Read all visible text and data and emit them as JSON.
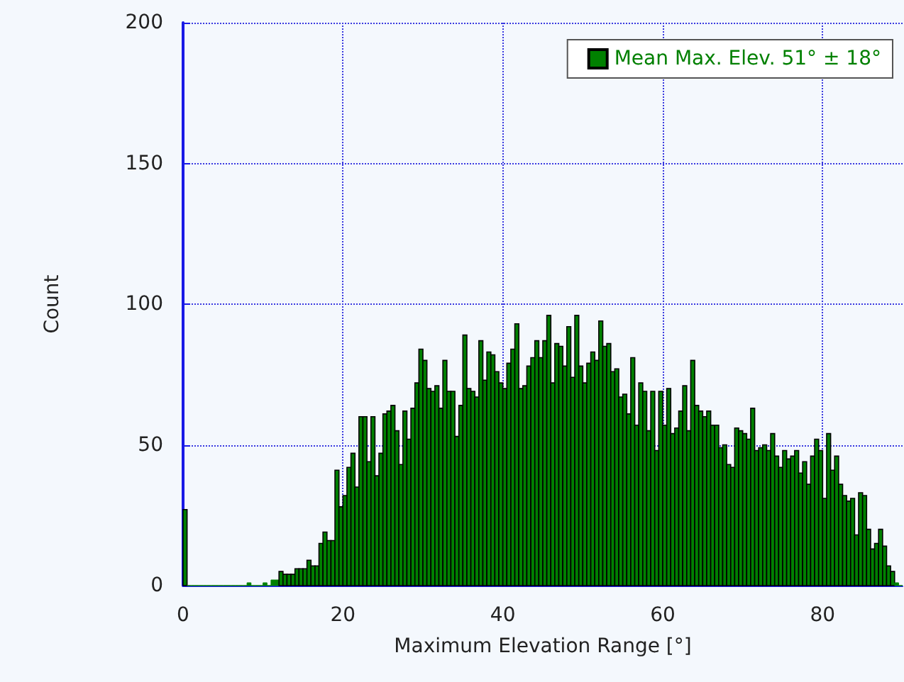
{
  "chart_data": {
    "type": "histogram",
    "xlabel": "Maximum Elevation Range [°]",
    "ylabel": "Count",
    "bins": [
      0,
      0.5,
      1,
      1.5,
      2,
      2.5,
      3,
      3.5,
      4,
      4.5,
      5,
      5.5,
      6,
      6.5,
      7,
      7.5,
      8,
      8.5,
      9,
      9.5,
      10,
      10.5,
      11,
      11.5,
      12,
      12.5,
      13,
      13.5,
      14,
      14.5,
      15,
      15.5,
      16,
      16.5,
      17,
      17.5,
      18,
      18.5,
      19,
      19.5,
      20,
      20.5,
      21,
      21.5,
      22,
      22.5,
      23,
      23.5,
      24,
      24.5,
      25,
      25.5,
      26,
      26.5,
      27,
      27.5,
      28,
      28.5,
      29,
      29.5,
      30,
      30.5,
      31,
      31.5,
      32,
      32.5,
      33,
      33.5,
      34,
      34.5,
      35,
      35.5,
      36,
      36.5,
      37,
      37.5,
      38,
      38.5,
      39,
      39.5,
      40,
      40.5,
      41,
      41.5,
      42,
      42.5,
      43,
      43.5,
      44,
      44.5,
      45,
      45.5,
      46,
      46.5,
      47,
      47.5,
      48,
      48.5,
      49,
      49.5,
      50,
      50.5,
      51,
      51.5,
      52,
      52.5,
      53,
      53.5,
      54,
      54.5,
      55,
      55.5,
      56,
      56.5,
      57,
      57.5,
      58,
      58.5,
      59,
      59.5,
      60,
      60.5,
      61,
      61.5,
      62,
      62.5,
      63,
      63.5,
      64,
      64.5,
      65,
      65.5,
      66,
      66.5,
      67,
      67.5,
      68,
      68.5,
      69,
      69.5,
      70,
      70.5,
      71,
      71.5,
      72,
      72.5,
      73,
      73.5,
      74,
      74.5,
      75,
      75.5,
      76,
      76.5,
      77,
      77.5,
      78,
      78.5,
      79,
      79.5,
      80,
      80.5,
      81,
      81.5,
      82,
      82.5,
      83,
      83.5,
      84,
      84.5,
      85,
      85.5,
      86,
      86.5,
      87,
      87.5,
      88,
      88.5,
      89,
      89.5,
      90
    ],
    "series": [
      {
        "name": "Mean Max. Elev. 51° ± 18°",
        "color": "#008000",
        "values": [
          27,
          0,
          0,
          0,
          0,
          0,
          0,
          0,
          0,
          0,
          0,
          0,
          0,
          0,
          0,
          0,
          1,
          0,
          0,
          0,
          1,
          0,
          2,
          2,
          5,
          4,
          4,
          4,
          6,
          6,
          6,
          9,
          7,
          7,
          15,
          19,
          16,
          16,
          41,
          28,
          32,
          42,
          47,
          35,
          60,
          60,
          44,
          60,
          39,
          47,
          61,
          62,
          64,
          55,
          43,
          62,
          52,
          63,
          72,
          84,
          80,
          70,
          69,
          71,
          63,
          80,
          69,
          69,
          53,
          64,
          89,
          70,
          69,
          67,
          87,
          73,
          83,
          82,
          76,
          72,
          70,
          79,
          84,
          93,
          70,
          71,
          78,
          81,
          87,
          81,
          87,
          96,
          72,
          86,
          85,
          78,
          92,
          74,
          96,
          78,
          72,
          79,
          83,
          80,
          94,
          85,
          86,
          76,
          77,
          67,
          68,
          61,
          81,
          57,
          72,
          69,
          55,
          69,
          48,
          69,
          57,
          70,
          54,
          56,
          62,
          71,
          55,
          80,
          64,
          62,
          60,
          62,
          57,
          57,
          49,
          50,
          43,
          42,
          56,
          55,
          54,
          52,
          63,
          48,
          49,
          50,
          48,
          54,
          46,
          42,
          48,
          45,
          46,
          48,
          40,
          44,
          36,
          46,
          52,
          48,
          31,
          54,
          41,
          46,
          36,
          32,
          30,
          31,
          18,
          33,
          32,
          20,
          13,
          15,
          20,
          14,
          7,
          5,
          1,
          0
        ]
      }
    ],
    "xlim": [
      0,
      90
    ],
    "xticks": [
      0,
      20,
      40,
      60,
      80
    ],
    "ylim": [
      0,
      200
    ],
    "yticks": [
      0,
      50,
      100,
      150,
      200
    ],
    "grid": true,
    "legend": "top right"
  }
}
